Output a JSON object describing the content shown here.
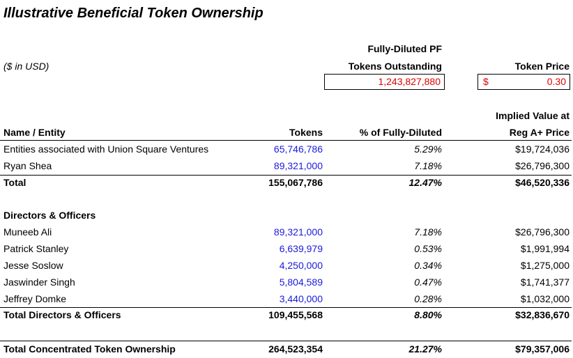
{
  "title": "Illustrative Beneficial Token Ownership",
  "subtitle": "($ in USD)",
  "outstanding": {
    "label_line1": "Fully-Diluted PF",
    "label_line2": "Tokens Outstanding",
    "value": "1,243,827,880"
  },
  "token_price": {
    "label": "Token Price",
    "currency": "$",
    "value": "0.30"
  },
  "columns": {
    "name": "Name / Entity",
    "tokens": "Tokens",
    "percent": "% of Fully-Diluted",
    "value_line1": "Implied Value at",
    "value_line2": "Reg A+ Price"
  },
  "holders": {
    "rows": [
      [
        "Entities associated with Union Square Ventures",
        "65,746,786",
        "5.29%",
        "$19,724,036"
      ],
      [
        "Ryan Shea",
        "89,321,000",
        "7.18%",
        "$26,796,300"
      ]
    ],
    "total": [
      "Total",
      "155,067,786",
      "12.47%",
      "$46,520,336"
    ]
  },
  "directors": {
    "heading": "Directors & Officers",
    "rows": [
      [
        "Muneeb Ali",
        "89,321,000",
        "7.18%",
        "$26,796,300"
      ],
      [
        "Patrick Stanley",
        "6,639,979",
        "0.53%",
        "$1,991,994"
      ],
      [
        "Jesse Soslow",
        "4,250,000",
        "0.34%",
        "$1,275,000"
      ],
      [
        "Jaswinder Singh",
        "5,804,589",
        "0.47%",
        "$1,741,377"
      ],
      [
        "Jeffrey Domke",
        "3,440,000",
        "0.28%",
        "$1,032,000"
      ]
    ],
    "total": [
      "Total Directors & Officers",
      "109,455,568",
      "8.80%",
      "$32,836,670"
    ]
  },
  "grand_total": [
    "Total Concentrated Token Ownership",
    "264,523,354",
    "21.27%",
    "$79,357,006"
  ]
}
